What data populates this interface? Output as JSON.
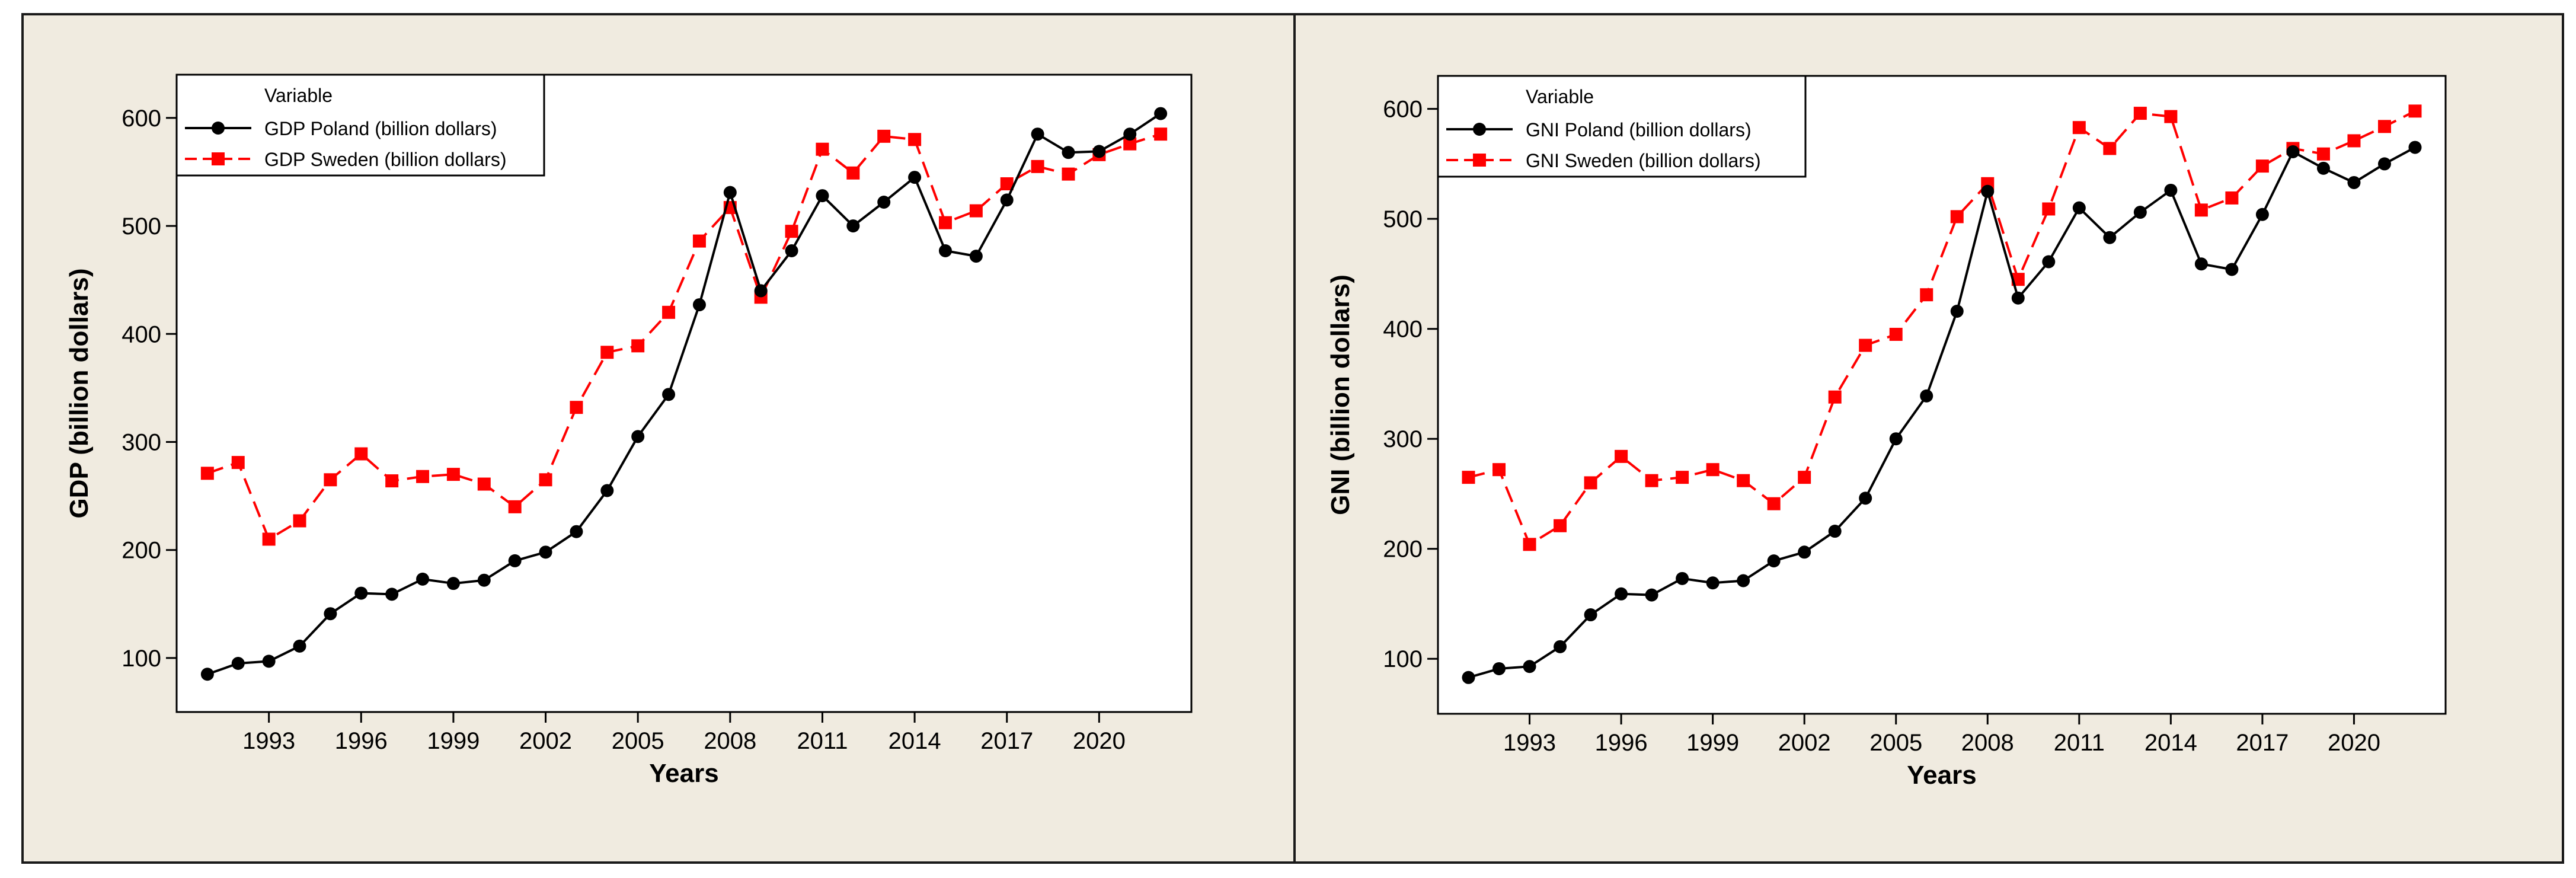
{
  "chart_data": [
    {
      "type": "line",
      "xlabel": "Years",
      "ylabel": "GDP (billion dollars)",
      "xlim": [
        1990,
        2023
      ],
      "ylim": [
        50,
        640
      ],
      "xticks": [
        "1993",
        "1996",
        "1999",
        "2002",
        "2005",
        "2008",
        "2011",
        "2014",
        "2017",
        "2020"
      ],
      "yticks": [
        "100",
        "200",
        "300",
        "400",
        "500",
        "600"
      ],
      "legend": {
        "title": "Variable",
        "placement": "top-left"
      },
      "x": [
        1991,
        1992,
        1993,
        1994,
        1995,
        1996,
        1997,
        1998,
        1999,
        2000,
        2001,
        2002,
        2003,
        2004,
        2005,
        2006,
        2007,
        2008,
        2009,
        2010,
        2011,
        2012,
        2013,
        2014,
        2015,
        2016,
        2017,
        2018,
        2019,
        2020,
        2021,
        2022
      ],
      "series": [
        {
          "name": "GDP Poland (billion dollars)",
          "color": "#000000",
          "marker": "circle",
          "dash": "solid",
          "values": [
            85,
            95,
            97,
            111,
            141,
            160,
            159,
            173,
            169,
            172,
            190,
            198,
            217,
            255,
            305,
            344,
            427,
            531,
            440,
            477,
            528,
            500,
            522,
            545,
            477,
            472,
            524,
            585,
            568,
            569,
            585,
            604
          ]
        },
        {
          "name": "GDP Sweden (billion dollars)",
          "color": "#ff0000",
          "marker": "square",
          "dash": "dashed",
          "values": [
            271,
            281,
            210,
            227,
            265,
            289,
            264,
            268,
            270,
            261,
            240,
            265,
            332,
            383,
            389,
            420,
            486,
            517,
            434,
            495,
            571,
            549,
            583,
            580,
            503,
            514,
            539,
            555,
            548,
            566,
            576,
            585
          ]
        }
      ]
    },
    {
      "type": "line",
      "xlabel": "Years",
      "ylabel": "GNI (billion dollars)",
      "xlim": [
        1990,
        2023
      ],
      "ylim": [
        50,
        630
      ],
      "xticks": [
        "1993",
        "1996",
        "1999",
        "2002",
        "2005",
        "2008",
        "2011",
        "2014",
        "2017",
        "2020"
      ],
      "yticks": [
        "100",
        "200",
        "300",
        "400",
        "500",
        "600"
      ],
      "legend": {
        "title": "Variable",
        "placement": "top-left"
      },
      "x": [
        1991,
        1992,
        1993,
        1994,
        1995,
        1996,
        1997,
        1998,
        1999,
        2000,
        2001,
        2002,
        2003,
        2004,
        2005,
        2006,
        2007,
        2008,
        2009,
        2010,
        2011,
        2012,
        2013,
        2014,
        2015,
        2016,
        2017,
        2018,
        2019,
        2020,
        2021,
        2022
      ],
      "series": [
        {
          "name": "GNI Poland (billion dollars)",
          "color": "#000000",
          "marker": "circle",
          "dash": "solid",
          "values": [
            83,
            91,
            93,
            111,
            140,
            159,
            158,
            173,
            169,
            171,
            189,
            197,
            216,
            246,
            300,
            339,
            416,
            525,
            428,
            461,
            510,
            483,
            506,
            526,
            459,
            454,
            504,
            561,
            546,
            533,
            550,
            565
          ]
        },
        {
          "name": "GNI Sweden (billion dollars)",
          "color": "#ff0000",
          "marker": "square",
          "dash": "dashed",
          "values": [
            265,
            272,
            204,
            221,
            260,
            284,
            262,
            265,
            272,
            262,
            241,
            265,
            338,
            385,
            395,
            431,
            502,
            532,
            445,
            509,
            583,
            564,
            596,
            593,
            508,
            519,
            548,
            564,
            559,
            571,
            584,
            598
          ]
        }
      ]
    }
  ]
}
